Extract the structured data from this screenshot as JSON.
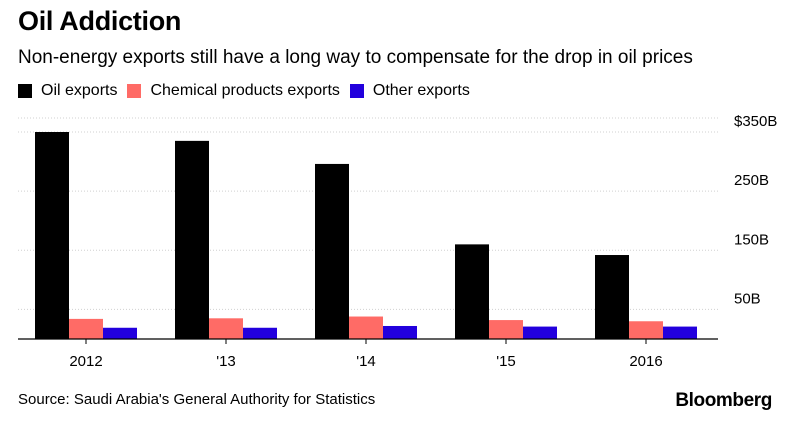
{
  "header": {
    "title": "Oil Addiction",
    "subtitle": "Non-energy exports still have a long way to compensate for the drop in oil prices"
  },
  "footer": {
    "source": "Source: Saudi Arabia's General Authority for Statistics",
    "brand": "Bloomberg"
  },
  "chart_data": {
    "type": "bar",
    "categories": [
      "2012",
      "'13",
      "'14",
      "'15",
      "2016"
    ],
    "series": [
      {
        "name": "Oil exports",
        "color": "#000000",
        "values": [
          350,
          335,
          296,
          160,
          142
        ]
      },
      {
        "name": "Chemical products exports",
        "color": "#ff6b66",
        "values": [
          34,
          35,
          38,
          32,
          30
        ]
      },
      {
        "name": "Other exports",
        "color": "#2200dd",
        "values": [
          19,
          19,
          22,
          21,
          21
        ]
      }
    ],
    "yticks": [
      50,
      150,
      250,
      350
    ],
    "ytick_labels": [
      "50B",
      "150B",
      "250B",
      "$350B"
    ],
    "ylim": [
      0,
      350
    ],
    "legend_position": "top-left",
    "grid": true
  }
}
